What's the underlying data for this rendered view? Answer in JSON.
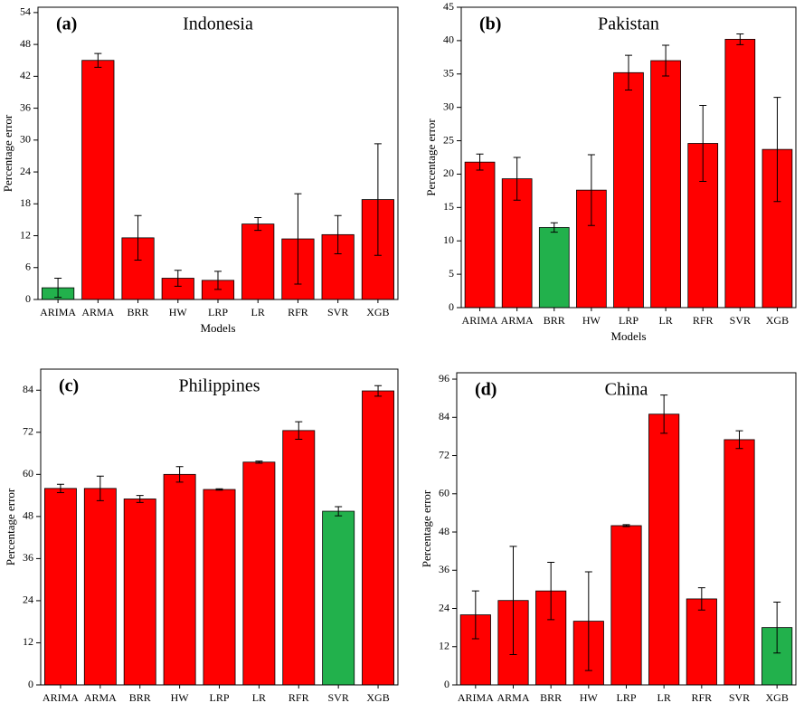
{
  "chart_data": [
    {
      "type": "bar",
      "panel": "(a)",
      "title": "Indonesia",
      "x_label": "Models",
      "y_label": "Percentage error",
      "categories": [
        "ARIMA",
        "ARMA",
        "BRR",
        "HW",
        "LRP",
        "LR",
        "RFR",
        "SVR",
        "XGB"
      ],
      "values": [
        2.2,
        45,
        11.6,
        4,
        3.6,
        14.2,
        11.4,
        12.2,
        18.8
      ],
      "errors": [
        1.8,
        1.3,
        4.2,
        1.5,
        1.7,
        1.2,
        8.5,
        3.6,
        10.5
      ],
      "colors": [
        "#22b14c",
        "#ff0000",
        "#ff0000",
        "#ff0000",
        "#ff0000",
        "#ff0000",
        "#ff0000",
        "#ff0000",
        "#ff0000"
      ],
      "ylim": [
        0,
        55
      ],
      "yticks": [
        0,
        6,
        12,
        18,
        24,
        30,
        36,
        42,
        48,
        54
      ]
    },
    {
      "type": "bar",
      "panel": "(b)",
      "title": "Pakistan",
      "x_label": "Models",
      "y_label": "Percentage error",
      "categories": [
        "ARIMA",
        "ARMA",
        "BRR",
        "HW",
        "LRP",
        "LR",
        "RFR",
        "SVR",
        "XGB"
      ],
      "values": [
        21.8,
        19.3,
        12,
        17.6,
        35.2,
        37,
        24.6,
        40.2,
        23.7
      ],
      "errors": [
        1.2,
        3.2,
        0.7,
        5.3,
        2.6,
        2.3,
        5.7,
        0.8,
        7.8
      ],
      "colors": [
        "#ff0000",
        "#ff0000",
        "#22b14c",
        "#ff0000",
        "#ff0000",
        "#ff0000",
        "#ff0000",
        "#ff0000",
        "#ff0000"
      ],
      "ylim": [
        0,
        45
      ],
      "yticks": [
        0,
        5,
        10,
        15,
        20,
        25,
        30,
        35,
        40,
        45
      ]
    },
    {
      "type": "bar",
      "panel": "(c)",
      "title": "Philippines",
      "x_label": "Models",
      "y_label": "Percentage error",
      "categories": [
        "ARIMA",
        "ARMA",
        "BRR",
        "HW",
        "LRP",
        "LR",
        "RFR",
        "SVR",
        "XGB"
      ],
      "values": [
        56,
        56,
        53,
        60,
        55.7,
        63.5,
        72.5,
        49.5,
        83.8
      ],
      "errors": [
        1.2,
        3.5,
        1,
        2.2,
        0.2,
        0.3,
        2.5,
        1.3,
        1.5
      ],
      "colors": [
        "#ff0000",
        "#ff0000",
        "#ff0000",
        "#ff0000",
        "#ff0000",
        "#ff0000",
        "#ff0000",
        "#22b14c",
        "#ff0000"
      ],
      "ylim": [
        0,
        90
      ],
      "yticks": [
        0,
        12,
        24,
        36,
        48,
        60,
        72,
        84
      ]
    },
    {
      "type": "bar",
      "panel": "(d)",
      "title": "China",
      "x_label": "Models",
      "y_label": "Percentage error",
      "categories": [
        "ARIMA",
        "ARMA",
        "BRR",
        "HW",
        "LRP",
        "LR",
        "RFR",
        "SVR",
        "XGB"
      ],
      "values": [
        22,
        26.5,
        29.5,
        20,
        50,
        85,
        27,
        77,
        18
      ],
      "errors": [
        7.5,
        17,
        9,
        15.5,
        0.3,
        6,
        3.5,
        2.8,
        8
      ],
      "colors": [
        "#ff0000",
        "#ff0000",
        "#ff0000",
        "#ff0000",
        "#ff0000",
        "#ff0000",
        "#ff0000",
        "#ff0000",
        "#22b14c"
      ],
      "ylim": [
        0,
        98
      ],
      "yticks": [
        0,
        12,
        24,
        36,
        48,
        60,
        72,
        84,
        96
      ]
    }
  ]
}
